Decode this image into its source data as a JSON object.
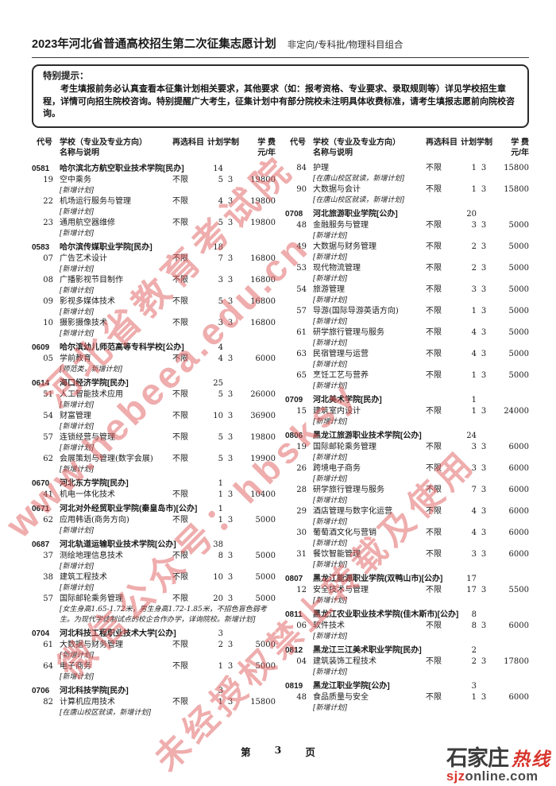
{
  "header": {
    "title": "2023年河北省普通高校招生第二次征集志愿计划",
    "subtitle": "非定向/专科批/物理科目组合"
  },
  "notice": {
    "label": "特别提示：",
    "body": "考生填报前务必认真查看本征集计划相关要求，其他要求（如：报考资格、专业要求、录取规则等）详见学校招生章程，详情可向招生院校咨询。特别提醒广大考生，征集计划中有部分院校未注明具体收费标准，请考生填报志愿前向院校咨询。"
  },
  "table_header": {
    "code": "代号",
    "name_line1": "学校（专业及专业方向）",
    "name_line2": "名称与说明",
    "subject": "再选科目",
    "plan": "计划",
    "years": "学制",
    "fee_line1": "学 费",
    "fee_line2": "元/年"
  },
  "columns": [
    {
      "entries": [
        {
          "t": "school",
          "code": "0581",
          "name": "哈尔滨北方航空职业技术学院[民办]",
          "plan": "14"
        },
        {
          "t": "major",
          "code": "19",
          "name": "空中乘务",
          "subject": "不限",
          "plan": "5",
          "years": "3",
          "fee": "19800",
          "note": "[新增计划]"
        },
        {
          "t": "major",
          "code": "22",
          "name": "机场运行服务与管理",
          "subject": "不限",
          "plan": "4",
          "years": "3",
          "fee": "19800",
          "note": "[新增计划]"
        },
        {
          "t": "major",
          "code": "23",
          "name": "通用航空器维修",
          "subject": "不限",
          "plan": "5",
          "years": "3",
          "fee": "19800",
          "note": "[新增计划]"
        },
        {
          "t": "school",
          "code": "0583",
          "name": "哈尔滨传媒职业学院[民办]",
          "plan": "18"
        },
        {
          "t": "major",
          "code": "07",
          "name": "广告艺术设计",
          "subject": "不限",
          "plan": "7",
          "years": "3",
          "fee": "16800",
          "note": "[新增计划]"
        },
        {
          "t": "major",
          "code": "08",
          "name": "广播影视节目制作",
          "subject": "不限",
          "plan": "3",
          "years": "3",
          "fee": "16800",
          "note": "[新增计划]"
        },
        {
          "t": "major",
          "code": "09",
          "name": "影视多媒体技术",
          "subject": "不限",
          "plan": "5",
          "years": "3",
          "fee": "16800",
          "note": "[新增计划]"
        },
        {
          "t": "major",
          "code": "10",
          "name": "摄影摄像技术",
          "subject": "不限",
          "plan": "3",
          "years": "3",
          "fee": "16800",
          "note": "[新增计划]"
        },
        {
          "t": "school",
          "code": "0609",
          "name": "哈尔滨幼儿师范高等专科学校[公办]",
          "plan": "4"
        },
        {
          "t": "major",
          "code": "05",
          "name": "学前教育",
          "subject": "不限",
          "plan": "4",
          "years": "3",
          "fee": "6000",
          "note": "[师范类，新增计划]"
        },
        {
          "t": "school",
          "code": "0614",
          "name": "海口经济学院[民办]",
          "plan": "25"
        },
        {
          "t": "major",
          "code": "51",
          "name": "人工智能技术应用",
          "subject": "不限",
          "plan": "5",
          "years": "3",
          "fee": "26000",
          "note": "[新增计划]"
        },
        {
          "t": "major",
          "code": "54",
          "name": "财富管理",
          "subject": "不限",
          "plan": "10",
          "years": "3",
          "fee": "36900",
          "note": "[新增计划]"
        },
        {
          "t": "major",
          "code": "57",
          "name": "连锁经营与管理",
          "subject": "不限",
          "plan": "5",
          "years": "3",
          "fee": "19800",
          "note": "[新增计划]"
        },
        {
          "t": "major",
          "code": "62",
          "name": "会展策划与管理(数字会展)",
          "subject": "不限",
          "plan": "5",
          "years": "3",
          "fee": "19900",
          "note": "[新增计划]"
        },
        {
          "t": "school",
          "code": "0670",
          "name": "河北东方学院[民办]",
          "plan": "1"
        },
        {
          "t": "major",
          "code": "41",
          "name": "机电一体化技术",
          "subject": "不限",
          "plan": "1",
          "years": "3",
          "fee": "10400",
          "note": ""
        },
        {
          "t": "school",
          "code": "0671",
          "name": "河北对外经贸职业学院(秦皇岛市)[公办]",
          "plan": "1"
        },
        {
          "t": "major",
          "code": "62",
          "name": "应用韩语(商务方向)",
          "subject": "不限",
          "plan": "1",
          "years": "3",
          "fee": "5000",
          "note": "[新增计划]"
        },
        {
          "t": "school",
          "code": "0687",
          "name": "河北轨道运输职业技术学院[公办]",
          "plan": "38"
        },
        {
          "t": "major",
          "code": "37",
          "name": "测绘地理信息技术",
          "subject": "不限",
          "plan": "8",
          "years": "3",
          "fee": "5000",
          "note": "[新增计划]"
        },
        {
          "t": "major",
          "code": "38",
          "name": "建筑工程技术",
          "subject": "不限",
          "plan": "10",
          "years": "3",
          "fee": "5000",
          "note": "[新增计划]"
        },
        {
          "t": "major",
          "code": "57",
          "name": "国际邮轮乘务管理",
          "subject": "不限",
          "plan": "20",
          "years": "3",
          "fee": "5000",
          "note": "[女生身高1.65-1.72米，男生身高1.72-1.85米，不招色盲色弱考生。为现代学徒制试点的校企合作办学，详询院校。新增计划]"
        },
        {
          "t": "school",
          "code": "0704",
          "name": "河北科技工程职业技术大学[公办]",
          "plan": "3"
        },
        {
          "t": "major",
          "code": "61",
          "name": "大数据与财务管理",
          "subject": "不限",
          "plan": "2",
          "years": "3",
          "fee": "5000",
          "note": "[新增计划]"
        },
        {
          "t": "major",
          "code": "64",
          "name": "电子商务",
          "subject": "不限",
          "plan": "1",
          "years": "3",
          "fee": "5000",
          "note": "[新增计划]"
        },
        {
          "t": "school",
          "code": "0706",
          "name": "河北科技学院[民办]",
          "plan": "3"
        },
        {
          "t": "major",
          "code": "82",
          "name": "计算机应用技术",
          "subject": "不限",
          "plan": "1",
          "years": "3",
          "fee": "15800",
          "note": "[在唐山校区就读，新增计划]"
        }
      ]
    },
    {
      "entries": [
        {
          "t": "major",
          "code": "84",
          "name": "护理",
          "subject": "不限",
          "plan": "1",
          "years": "3",
          "fee": "15800",
          "note": "[在唐山校区就读，新增计划]"
        },
        {
          "t": "major",
          "code": "90",
          "name": "大数据与会计",
          "subject": "不限",
          "plan": "1",
          "years": "3",
          "fee": "15800",
          "note": "[在唐山校区就读，新增计划]"
        },
        {
          "t": "school",
          "code": "0708",
          "name": "河北旅游职业学院[公办]",
          "plan": "20"
        },
        {
          "t": "major",
          "code": "48",
          "name": "金融服务与管理",
          "subject": "不限",
          "plan": "3",
          "years": "3",
          "fee": "5000",
          "note": "[新增计划]"
        },
        {
          "t": "major",
          "code": "49",
          "name": "大数据与财务管理",
          "subject": "不限",
          "plan": "2",
          "years": "3",
          "fee": "5000",
          "note": "[新增计划]"
        },
        {
          "t": "major",
          "code": "53",
          "name": "现代物流管理",
          "subject": "不限",
          "plan": "2",
          "years": "3",
          "fee": "5000",
          "note": "[新增计划]"
        },
        {
          "t": "major",
          "code": "54",
          "name": "旅游管理",
          "subject": "不限",
          "plan": "3",
          "years": "3",
          "fee": "5000",
          "note": "[新增计划]"
        },
        {
          "t": "major",
          "code": "57",
          "name": "导游(国际导游英语方向)",
          "subject": "不限",
          "plan": "1",
          "years": "3",
          "fee": "5000",
          "note": "[新增计划]"
        },
        {
          "t": "major",
          "code": "61",
          "name": "研学旅行管理与服务",
          "subject": "不限",
          "plan": "4",
          "years": "3",
          "fee": "5000",
          "note": "[新增计划]"
        },
        {
          "t": "major",
          "code": "63",
          "name": "民宿管理与运营",
          "subject": "不限",
          "plan": "4",
          "years": "3",
          "fee": "5000",
          "note": "[新增计划]"
        },
        {
          "t": "major",
          "code": "65",
          "name": "烹饪工艺与营养",
          "subject": "不限",
          "plan": "1",
          "years": "3",
          "fee": "5000",
          "note": "[新增计划]"
        },
        {
          "t": "school",
          "code": "0709",
          "name": "河北美术学院[民办]",
          "plan": "1"
        },
        {
          "t": "major",
          "code": "15",
          "name": "建筑室内设计",
          "subject": "不限",
          "plan": "1",
          "years": "3",
          "fee": "24000",
          "note": "[新增计划]"
        },
        {
          "t": "school",
          "code": "0806",
          "name": "黑龙江旅游职业技术学院[公办]",
          "plan": "24"
        },
        {
          "t": "major",
          "code": "19",
          "name": "国际邮轮乘务管理",
          "subject": "不限",
          "plan": "3",
          "years": "3",
          "fee": "6000",
          "note": "[新增计划]"
        },
        {
          "t": "major",
          "code": "26",
          "name": "跨境电子商务",
          "subject": "不限",
          "plan": "3",
          "years": "3",
          "fee": "6000",
          "note": "[新增计划]"
        },
        {
          "t": "major",
          "code": "28",
          "name": "研学旅行管理与服务",
          "subject": "不限",
          "plan": "7",
          "years": "3",
          "fee": "6000",
          "note": "[新增计划]"
        },
        {
          "t": "major",
          "code": "29",
          "name": "酒店管理与数字化运营",
          "subject": "不限",
          "plan": "4",
          "years": "3",
          "fee": "6000",
          "note": "[新增计划]"
        },
        {
          "t": "major",
          "code": "30",
          "name": "葡萄酒文化与营销",
          "subject": "不限",
          "plan": "4",
          "years": "3",
          "fee": "6000",
          "note": "[新增计划]"
        },
        {
          "t": "major",
          "code": "31",
          "name": "餐饮智能管理",
          "subject": "不限",
          "plan": "3",
          "years": "3",
          "fee": "6000",
          "note": "[新增计划]"
        },
        {
          "t": "school",
          "code": "0807",
          "name": "黑龙江能源职业学院(双鸭山市)[公办]",
          "plan": "17"
        },
        {
          "t": "major",
          "code": "12",
          "name": "安全技术与管理",
          "subject": "不限",
          "plan": "17",
          "years": "3",
          "fee": "5500",
          "note": "[新增计划]"
        },
        {
          "t": "school",
          "code": "0811",
          "name": "黑龙江农业职业技术学院(佳木斯市)[公办]",
          "plan": "8"
        },
        {
          "t": "major",
          "code": "06",
          "name": "软件技术",
          "subject": "不限",
          "plan": "8",
          "years": "3",
          "fee": "6000",
          "note": "[新增计划]"
        },
        {
          "t": "school",
          "code": "0812",
          "name": "黑龙江三江美术职业学院[民办]",
          "plan": "2"
        },
        {
          "t": "major",
          "code": "04",
          "name": "建筑装饰工程技术",
          "subject": "不限",
          "plan": "2",
          "years": "3",
          "fee": "17800",
          "note": "[新增计划]"
        },
        {
          "t": "school",
          "code": "0819",
          "name": "黑龙江职业学院[公办]",
          "plan": "3"
        },
        {
          "t": "major",
          "code": "48",
          "name": "食品质量与安全",
          "subject": "不限",
          "plan": "1",
          "years": "3",
          "fee": "6000",
          "note": "[新增计划]"
        }
      ]
    }
  ],
  "footer": {
    "prefix": "第",
    "page": "3",
    "suffix": "页"
  },
  "watermark": {
    "color": "#df5c5c",
    "lines": [
      "河北省教育考试院",
      "www.hebeea.edu.cn",
      "微信公众号：hbsksy",
      "未经授权禁止转载及使用"
    ]
  },
  "logo": {
    "brand_black": "石家庄",
    "brand_red": "热线",
    "domain_red": "sjz",
    "domain_gray": "online.com"
  }
}
